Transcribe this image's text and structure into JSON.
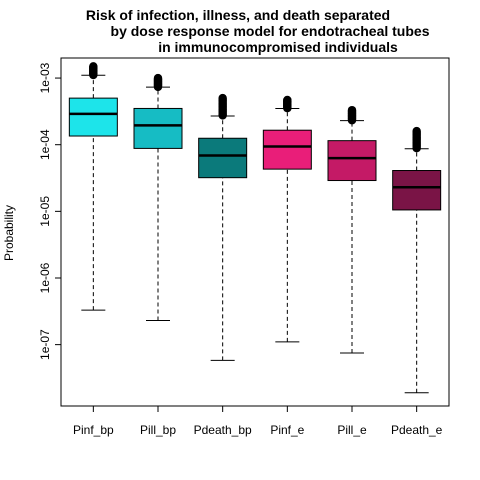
{
  "chart_data": {
    "type": "box",
    "title_lines": [
      "Risk of infection, illness, and death separated",
      "by dose response model for endotracheal tubes",
      "in immunocompromised individuals"
    ],
    "xlabel": "",
    "ylabel": "Probability",
    "y_scale": "log10",
    "ylim": [
      1.2e-08,
      0.002
    ],
    "y_ticks": [
      1e-07,
      1e-06,
      1e-05,
      0.0001,
      0.001
    ],
    "y_tick_labels": [
      "1e-07",
      "1e-06",
      "1e-05",
      "1e-04",
      "1e-03"
    ],
    "categories": [
      "Pinf_bp",
      "Pill_bp",
      "Pdeath_bp",
      "Pinf_e",
      "Pill_e",
      "Pdeath_e"
    ],
    "colors": [
      "#1de4ea",
      "#16bcc4",
      "#0b7a7b",
      "#e91e79",
      "#c41a66",
      "#7a1446"
    ],
    "boxes": [
      {
        "whisker_low": 3.3e-07,
        "q1": 0.000135,
        "median": 0.00029,
        "q3": 0.0005,
        "whisker_high": 0.0011,
        "outlier_max": 0.0015
      },
      {
        "whisker_low": 2.3e-07,
        "q1": 8.8e-05,
        "median": 0.000195,
        "q3": 0.00035,
        "whisker_high": 0.00073,
        "outlier_max": 0.001
      },
      {
        "whisker_low": 5.8e-08,
        "q1": 3.2e-05,
        "median": 6.9e-05,
        "q3": 0.000125,
        "whisker_high": 0.00027,
        "outlier_max": 0.0005
      },
      {
        "whisker_low": 1.1e-07,
        "q1": 4.3e-05,
        "median": 9.4e-05,
        "q3": 0.000165,
        "whisker_high": 0.00035,
        "outlier_max": 0.00047
      },
      {
        "whisker_low": 7.5e-08,
        "q1": 2.9e-05,
        "median": 6.3e-05,
        "q3": 0.000115,
        "whisker_high": 0.00023,
        "outlier_max": 0.00033
      },
      {
        "whisker_low": 1.9e-08,
        "q1": 1.05e-05,
        "median": 2.3e-05,
        "q3": 4.1e-05,
        "whisker_high": 8.7e-05,
        "outlier_max": 0.00016
      }
    ]
  }
}
